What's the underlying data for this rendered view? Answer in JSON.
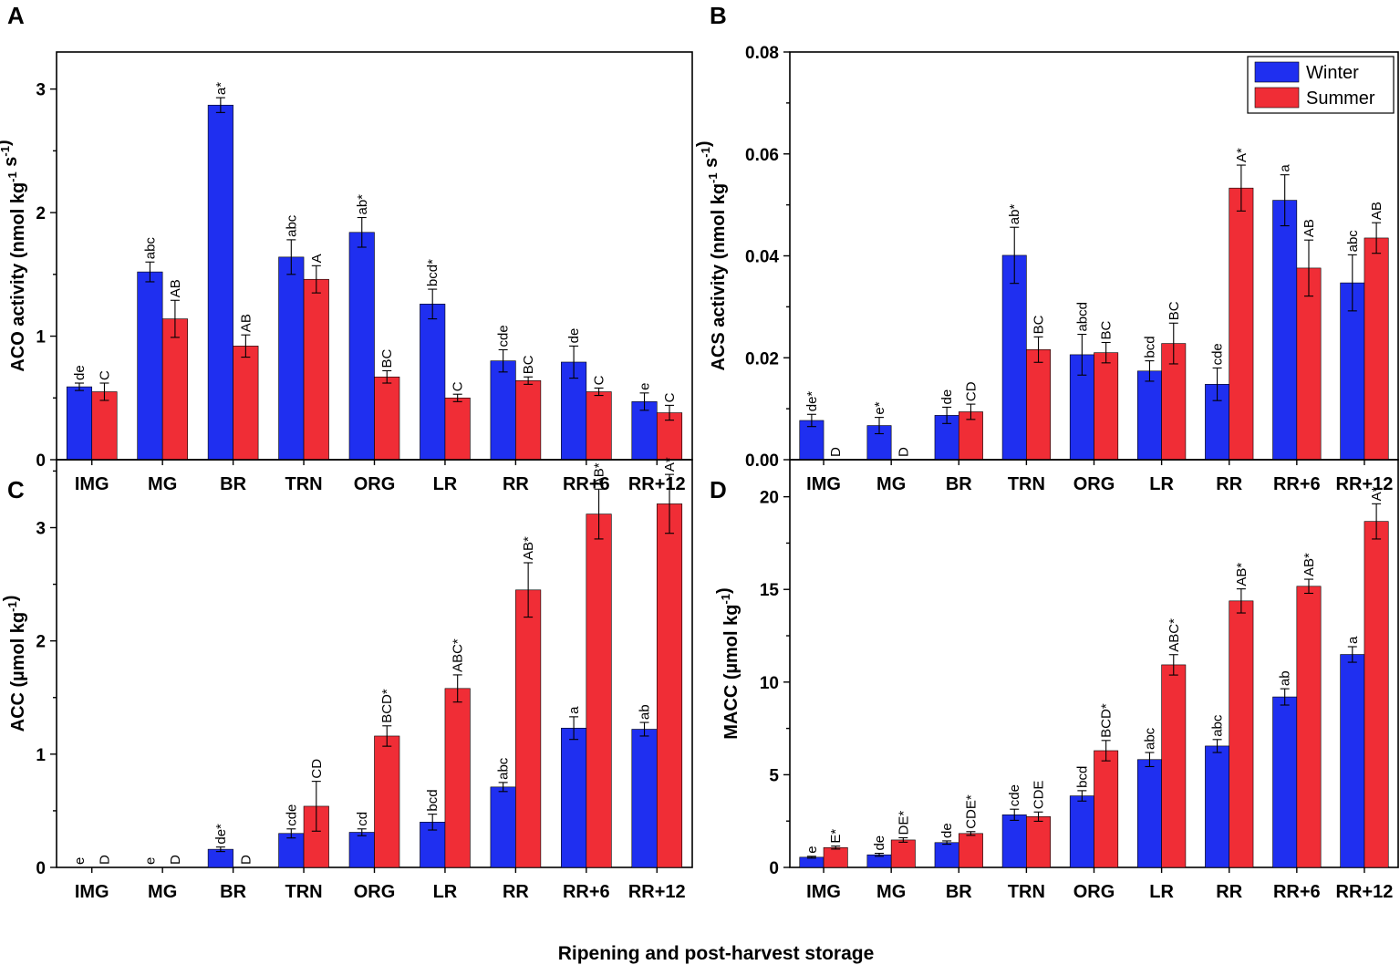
{
  "colors": {
    "winter": "#1f2ff0",
    "summer": "#f02d36"
  },
  "legend": {
    "winter": "Winter",
    "summer": "Summer"
  },
  "xaxis_title": "Ripening and post-harvest storage",
  "chart_data": [
    {
      "type": "bar",
      "panel": "A",
      "ylabel": "ACO activity (nmol kg-1 s-1)",
      "ylim": [
        0,
        3.3
      ],
      "yticks": [
        0,
        1,
        2,
        3
      ],
      "ytick_labels": [
        "0",
        "1",
        "2",
        "3"
      ],
      "categories": [
        "IMG",
        "MG",
        "BR",
        "TRN",
        "ORG",
        "LR",
        "RR",
        "RR+6",
        "RR+12"
      ],
      "series": [
        {
          "name": "Winter",
          "values": [
            0.59,
            1.52,
            2.87,
            1.64,
            1.84,
            1.26,
            0.8,
            0.79,
            0.47
          ],
          "errors": [
            0.03,
            0.08,
            0.06,
            0.14,
            0.12,
            0.12,
            0.09,
            0.13,
            0.07
          ],
          "labels": [
            "de",
            "abc",
            "a*",
            "abc",
            "ab*",
            "bcd*",
            "cde",
            "de",
            "e"
          ]
        },
        {
          "name": "Summer",
          "values": [
            0.55,
            1.14,
            0.92,
            1.46,
            0.67,
            0.5,
            0.64,
            0.55,
            0.38
          ],
          "errors": [
            0.07,
            0.15,
            0.09,
            0.11,
            0.05,
            0.03,
            0.03,
            0.03,
            0.06
          ],
          "labels": [
            "C",
            "AB",
            "AB",
            "A",
            "BC",
            "C",
            "BC",
            "C",
            "C"
          ]
        }
      ]
    },
    {
      "type": "bar",
      "panel": "B",
      "ylabel": "ACS activity (nmol kg-1 s-1)",
      "ylim": [
        0,
        0.08
      ],
      "yticks": [
        0,
        0.02,
        0.04,
        0.06,
        0.08
      ],
      "ytick_labels": [
        "0.00",
        "0.02",
        "0.04",
        "0.06",
        "0.08"
      ],
      "categories": [
        "IMG",
        "MG",
        "BR",
        "TRN",
        "ORG",
        "LR",
        "RR",
        "RR+6",
        "RR+12"
      ],
      "series": [
        {
          "name": "Winter",
          "values": [
            0.0077,
            0.0067,
            0.0087,
            0.0401,
            0.0206,
            0.0174,
            0.0148,
            0.0509,
            0.0347
          ],
          "errors": [
            0.0012,
            0.0016,
            0.0016,
            0.0055,
            0.004,
            0.002,
            0.0032,
            0.005,
            0.0055
          ],
          "labels": [
            "de*",
            "e*",
            "de",
            "ab*",
            "abcd",
            "bcd",
            "cde",
            "a",
            "abc"
          ]
        },
        {
          "name": "Summer",
          "values": [
            0,
            0,
            0.0094,
            0.0216,
            0.021,
            0.0228,
            0.0533,
            0.0376,
            0.0435
          ],
          "errors": [
            0,
            0,
            0.0015,
            0.0025,
            0.002,
            0.004,
            0.0045,
            0.0055,
            0.003
          ],
          "labels": [
            "D",
            "D",
            "CD",
            "BC",
            "BC",
            "BC",
            "A*",
            "AB",
            "AB"
          ]
        }
      ]
    },
    {
      "type": "bar",
      "panel": "C",
      "ylabel": "ACC (µmol kg-1)",
      "ylim": [
        0,
        3.6
      ],
      "yticks": [
        0,
        1,
        2,
        3
      ],
      "ytick_labels": [
        "0",
        "1",
        "2",
        "3"
      ],
      "categories": [
        "IMG",
        "MG",
        "BR",
        "TRN",
        "ORG",
        "LR",
        "RR",
        "RR+6",
        "RR+12"
      ],
      "series": [
        {
          "name": "Winter",
          "values": [
            0,
            0,
            0.16,
            0.3,
            0.31,
            0.4,
            0.71,
            1.23,
            1.22
          ],
          "errors": [
            0,
            0,
            0.02,
            0.04,
            0.03,
            0.07,
            0.04,
            0.1,
            0.06
          ],
          "labels": [
            "e",
            "e",
            "de*",
            "cde",
            "cd",
            "bcd",
            "abc",
            "a",
            "ab"
          ]
        },
        {
          "name": "Summer",
          "values": [
            0,
            0,
            0,
            0.54,
            1.16,
            1.58,
            2.45,
            3.12,
            3.21
          ],
          "errors": [
            0,
            0,
            0,
            0.22,
            0.09,
            0.12,
            0.24,
            0.22,
            0.26
          ],
          "labels": [
            "D",
            "D",
            "D",
            "CD",
            "BCD*",
            "ABC*",
            "AB*",
            "AB*",
            "A*"
          ]
        }
      ]
    },
    {
      "type": "bar",
      "panel": "D",
      "ylabel": "MACC (µmol kg-1)",
      "ylim": [
        0,
        22
      ],
      "yticks": [
        0,
        5,
        10,
        15,
        20
      ],
      "ytick_labels": [
        "0",
        "5",
        "10",
        "15",
        "20"
      ],
      "categories": [
        "IMG",
        "MG",
        "BR",
        "TRN",
        "ORG",
        "LR",
        "RR",
        "RR+6",
        "RR+12"
      ],
      "series": [
        {
          "name": "Winter",
          "values": [
            0.55,
            0.68,
            1.34,
            2.84,
            3.86,
            5.82,
            6.55,
            9.2,
            11.49
          ],
          "errors": [
            0.05,
            0.08,
            0.09,
            0.3,
            0.28,
            0.38,
            0.35,
            0.44,
            0.42
          ],
          "labels": [
            "e",
            "de",
            "de",
            "cde",
            "bcd",
            "abc",
            "abc",
            "ab",
            "a"
          ]
        },
        {
          "name": "Summer",
          "values": [
            1.07,
            1.48,
            1.83,
            2.74,
            6.3,
            10.93,
            14.38,
            15.17,
            18.67
          ],
          "errors": [
            0.08,
            0.12,
            0.1,
            0.25,
            0.55,
            0.55,
            0.65,
            0.38,
            0.95
          ],
          "labels": [
            "E*",
            "DE*",
            "CDE*",
            "CDE",
            "BCD*",
            "ABC*",
            "AB*",
            "AB*",
            "A*"
          ]
        }
      ]
    }
  ]
}
